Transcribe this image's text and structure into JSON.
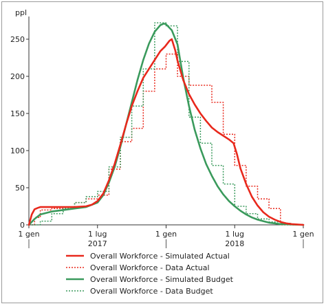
{
  "chart_data": {
    "type": "line",
    "unit_label": "ppl",
    "x_ticks": [
      {
        "label": "1 gen",
        "year": "",
        "t": 0
      },
      {
        "label": "1 lug",
        "year": "2017",
        "t": 6
      },
      {
        "label": "1 gen",
        "year": "",
        "t": 12
      },
      {
        "label": "1 lug",
        "year": "2018",
        "t": 18
      },
      {
        "label": "1 gen",
        "year": "",
        "t": 24
      }
    ],
    "x_range_months": [
      0,
      24
    ],
    "ylim": [
      0,
      275
    ],
    "y_ticks": [
      0,
      50,
      100,
      150,
      200,
      250
    ],
    "grid": false,
    "legend_position": "bottom",
    "series": [
      {
        "name": "Overall Workforce - Simulated Actual",
        "style": "solid",
        "color": "#e8281c",
        "points": [
          [
            0,
            0
          ],
          [
            0.25,
            14
          ],
          [
            0.5,
            21
          ],
          [
            0.8,
            23
          ],
          [
            1,
            24
          ],
          [
            2,
            24
          ],
          [
            3,
            24
          ],
          [
            4,
            24
          ],
          [
            5,
            25
          ],
          [
            5.5,
            27
          ],
          [
            6,
            32
          ],
          [
            6.5,
            42
          ],
          [
            7,
            60
          ],
          [
            7.5,
            82
          ],
          [
            8,
            108
          ],
          [
            8.5,
            135
          ],
          [
            9,
            160
          ],
          [
            9.5,
            180
          ],
          [
            10,
            198
          ],
          [
            10.5,
            210
          ],
          [
            11,
            222
          ],
          [
            11.5,
            234
          ],
          [
            11.9,
            240
          ],
          [
            12.3,
            248
          ],
          [
            12.5,
            250
          ],
          [
            12.8,
            235
          ],
          [
            13,
            221
          ],
          [
            13.5,
            195
          ],
          [
            14,
            176
          ],
          [
            14.5,
            162
          ],
          [
            15,
            150
          ],
          [
            15.5,
            140
          ],
          [
            16,
            131
          ],
          [
            16.5,
            125
          ],
          [
            17,
            120
          ],
          [
            17.5,
            115
          ],
          [
            17.9,
            110
          ],
          [
            18.2,
            95
          ],
          [
            18.5,
            76
          ],
          [
            19,
            55
          ],
          [
            19.5,
            38
          ],
          [
            20,
            26
          ],
          [
            20.5,
            17
          ],
          [
            21,
            11
          ],
          [
            21.5,
            7
          ],
          [
            22,
            4
          ],
          [
            22.5,
            2
          ],
          [
            23,
            1
          ],
          [
            24,
            0
          ]
        ]
      },
      {
        "name": "Overall Workforce - Data Actual",
        "style": "dotted",
        "color": "#e8281c",
        "points": [
          [
            0,
            0
          ],
          [
            0.5,
            0
          ],
          [
            0.5,
            10
          ],
          [
            1,
            10
          ],
          [
            1,
            20
          ],
          [
            2,
            20
          ],
          [
            2,
            22
          ],
          [
            4,
            22
          ],
          [
            4,
            30
          ],
          [
            5,
            30
          ],
          [
            5,
            35
          ],
          [
            6,
            35
          ],
          [
            6,
            40
          ],
          [
            7,
            40
          ],
          [
            7,
            75
          ],
          [
            8,
            75
          ],
          [
            8,
            112
          ],
          [
            9,
            112
          ],
          [
            9,
            130
          ],
          [
            10,
            130
          ],
          [
            10,
            180
          ],
          [
            11,
            180
          ],
          [
            11,
            210
          ],
          [
            12,
            210
          ],
          [
            12,
            230
          ],
          [
            13,
            230
          ],
          [
            13,
            200
          ],
          [
            14,
            200
          ],
          [
            14,
            188
          ],
          [
            16,
            188
          ],
          [
            16,
            165
          ],
          [
            17,
            165
          ],
          [
            17,
            122
          ],
          [
            18,
            122
          ],
          [
            18,
            80
          ],
          [
            19,
            80
          ],
          [
            19,
            52
          ],
          [
            20,
            52
          ],
          [
            20,
            35
          ],
          [
            21,
            35
          ],
          [
            21,
            22
          ],
          [
            22,
            22
          ],
          [
            22,
            0
          ],
          [
            24,
            0
          ]
        ]
      },
      {
        "name": "Overall Workforce - Simulated Budget",
        "style": "solid",
        "color": "#3a9a5c",
        "points": [
          [
            0,
            0
          ],
          [
            0.5,
            8
          ],
          [
            1,
            14
          ],
          [
            2,
            18
          ],
          [
            3,
            20
          ],
          [
            4,
            22
          ],
          [
            5,
            24
          ],
          [
            6,
            30
          ],
          [
            6.5,
            40
          ],
          [
            7,
            57
          ],
          [
            7.5,
            78
          ],
          [
            8,
            105
          ],
          [
            8.5,
            135
          ],
          [
            9,
            165
          ],
          [
            9.5,
            195
          ],
          [
            10,
            222
          ],
          [
            10.5,
            244
          ],
          [
            11,
            260
          ],
          [
            11.5,
            269
          ],
          [
            11.8,
            271
          ],
          [
            12,
            270
          ],
          [
            12.5,
            262
          ],
          [
            13,
            243
          ],
          [
            13.5,
            198
          ],
          [
            14,
            160
          ],
          [
            14.5,
            128
          ],
          [
            15,
            103
          ],
          [
            15.5,
            82
          ],
          [
            16,
            66
          ],
          [
            16.5,
            52
          ],
          [
            17,
            41
          ],
          [
            17.5,
            32
          ],
          [
            18,
            25
          ],
          [
            18.5,
            19
          ],
          [
            19,
            14
          ],
          [
            19.5,
            10
          ],
          [
            20,
            7
          ],
          [
            20.5,
            5
          ],
          [
            21,
            3
          ],
          [
            21.5,
            2
          ],
          [
            22,
            1
          ],
          [
            24,
            0
          ]
        ]
      },
      {
        "name": "Overall Workforce - Data Budget",
        "style": "dotted",
        "color": "#3a9a5c",
        "points": [
          [
            0,
            0
          ],
          [
            1,
            0
          ],
          [
            1,
            5
          ],
          [
            2,
            5
          ],
          [
            2,
            15
          ],
          [
            3,
            15
          ],
          [
            3,
            22
          ],
          [
            4,
            22
          ],
          [
            4,
            30
          ],
          [
            5,
            30
          ],
          [
            5,
            38
          ],
          [
            6,
            38
          ],
          [
            6,
            45
          ],
          [
            7,
            45
          ],
          [
            7,
            78
          ],
          [
            8,
            78
          ],
          [
            8,
            118
          ],
          [
            9,
            118
          ],
          [
            9,
            160
          ],
          [
            10,
            160
          ],
          [
            10,
            210
          ],
          [
            11,
            210
          ],
          [
            11,
            272
          ],
          [
            12,
            272
          ],
          [
            12,
            268
          ],
          [
            13,
            268
          ],
          [
            13,
            220
          ],
          [
            14,
            220
          ],
          [
            14,
            145
          ],
          [
            15,
            145
          ],
          [
            15,
            110
          ],
          [
            16,
            110
          ],
          [
            16,
            80
          ],
          [
            17,
            80
          ],
          [
            17,
            55
          ],
          [
            18,
            55
          ],
          [
            18,
            25
          ],
          [
            19,
            25
          ],
          [
            19,
            15
          ],
          [
            20,
            15
          ],
          [
            20,
            8
          ],
          [
            21,
            8
          ],
          [
            21,
            4
          ],
          [
            22,
            4
          ],
          [
            22,
            2
          ],
          [
            23,
            2
          ],
          [
            23,
            0
          ],
          [
            24,
            0
          ]
        ]
      }
    ]
  }
}
